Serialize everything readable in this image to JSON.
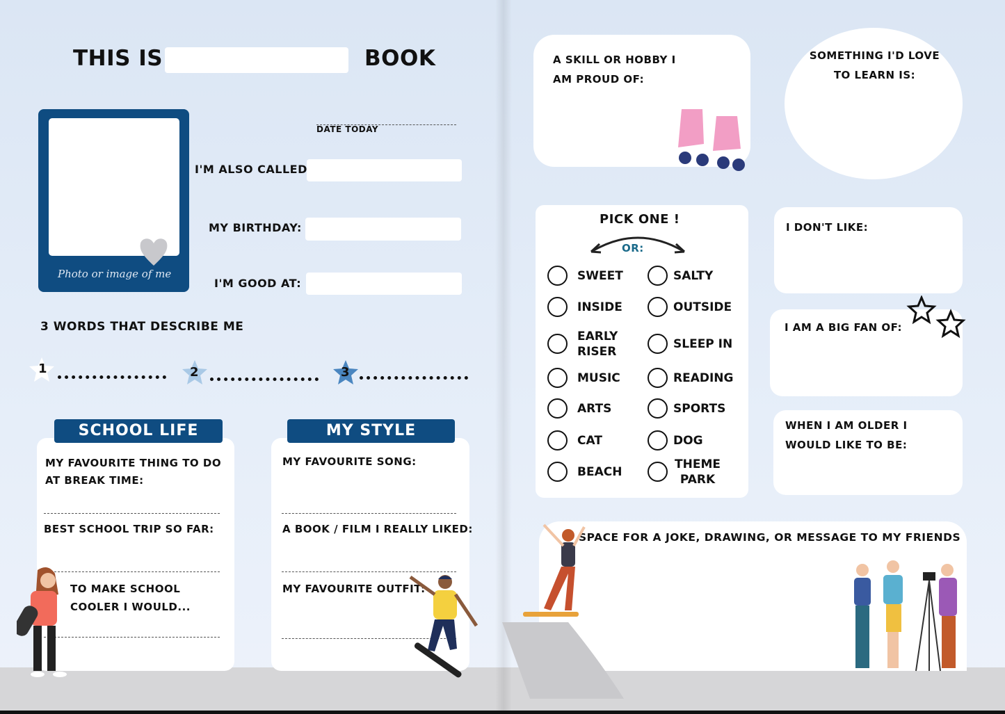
{
  "left_page": {
    "title_prefix": "THIS IS",
    "title_suffix": "BOOK",
    "photo_caption": "Photo or image of me",
    "date_label": "DATE TODAY",
    "fields": [
      {
        "label": "I'M ALSO CALLED:"
      },
      {
        "label": "MY BIRTHDAY:"
      },
      {
        "label": "I'M GOOD AT:"
      }
    ],
    "three_words_label": "3 WORDS THAT DESCRIBE ME",
    "word_numbers": [
      "1",
      "2",
      "3"
    ],
    "school_life": {
      "title": "SCHOOL LIFE",
      "prompts": [
        "MY FAVOURITE THING TO DO AT BREAK TIME:",
        "BEST SCHOOL TRIP SO FAR:",
        "TO MAKE SCHOOL COOLER I WOULD..."
      ]
    },
    "my_style": {
      "title": "MY STYLE",
      "prompts": [
        "MY FAVOURITE SONG:",
        "A BOOK / FILM I REALLY LIKED:",
        "MY FAVOURITE OUTFIT:"
      ]
    }
  },
  "right_page": {
    "skill_prompt": "A SKILL OR HOBBY I AM PROUD OF:",
    "learn_prompt": "SOMETHING I'D LOVE TO LEARN IS:",
    "pick_one": {
      "title": "PICK ONE !",
      "or_label": "OR:",
      "or_color": "#1a6a8a",
      "pairs": [
        [
          "SWEET",
          "SALTY"
        ],
        [
          "INSIDE",
          "OUTSIDE"
        ],
        [
          "EARLY RISER",
          "SLEEP IN"
        ],
        [
          "MUSIC",
          "READING"
        ],
        [
          "ARTS",
          "SPORTS"
        ],
        [
          "CAT",
          "DOG"
        ],
        [
          "BEACH",
          "THEME PARK"
        ]
      ]
    },
    "dont_like_prompt": "I DON'T LIKE:",
    "big_fan_prompt": "I AM A BIG FAN OF:",
    "older_prompt": "WHEN I AM OLDER I WOULD LIKE TO BE:",
    "space_prompt": "SPACE FOR A JOKE, DRAWING, OR MESSAGE TO MY FRIENDS"
  },
  "colors": {
    "navy": "#0f4c81",
    "page_bg": "#dfe9f6",
    "ground": "#d6d6d8"
  }
}
